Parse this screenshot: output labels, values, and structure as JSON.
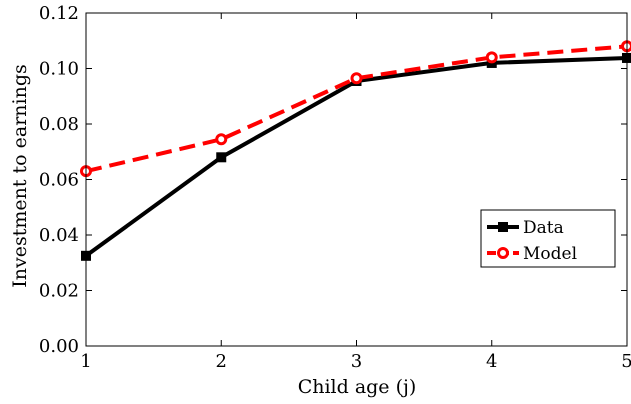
{
  "chart_data": {
    "type": "line",
    "title": "",
    "xlabel": "Child age (j)",
    "ylabel": "Investment to earnings",
    "x": [
      1,
      2,
      3,
      4,
      5
    ],
    "xlim": [
      1,
      5
    ],
    "ylim": [
      0,
      0.12
    ],
    "xticks": [
      "1",
      "2",
      "3",
      "4",
      "5"
    ],
    "yticks": [
      "0.00",
      "0.02",
      "0.04",
      "0.06",
      "0.08",
      "0.10",
      "0.12"
    ],
    "grid": false,
    "legend_position": "right",
    "series": [
      {
        "name": "Data",
        "values": [
          0.0325,
          0.068,
          0.0955,
          0.102,
          0.1038
        ],
        "color": "#000000",
        "line_style": "solid",
        "marker": "square"
      },
      {
        "name": "Model",
        "values": [
          0.063,
          0.0745,
          0.0965,
          0.104,
          0.108
        ],
        "color": "#ff0000",
        "line_style": "dashed",
        "marker": "circle"
      }
    ]
  }
}
